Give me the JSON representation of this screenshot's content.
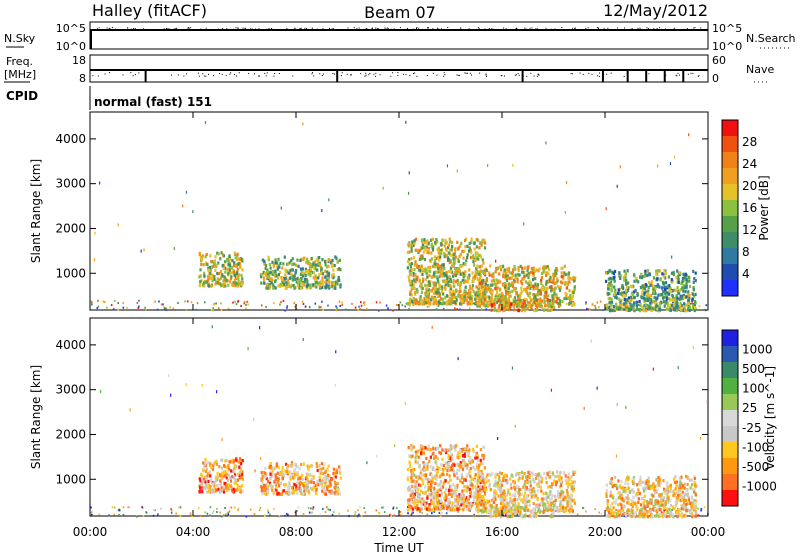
{
  "header": {
    "station": "Halley (fitACF)",
    "beam": "Beam 07",
    "date": "12/May/2012"
  },
  "panels": {
    "nsky": {
      "label": "N.Sky",
      "right_label": "N.Search",
      "left_ticks": [
        "10^5",
        "10^0"
      ],
      "right_ticks": [
        "10^5",
        "10^0"
      ]
    },
    "freq": {
      "label_line1": "Freq.",
      "label_line2": "[MHz]",
      "right_label": "Nave",
      "left_ticks": [
        "18",
        "8"
      ],
      "right_ticks": [
        "60",
        "0"
      ]
    },
    "cpid": {
      "label": "CPID",
      "text": "normal (fast) 151"
    }
  },
  "x_axis": {
    "label": "Time UT",
    "ticks": [
      "00:00",
      "04:00",
      "08:00",
      "12:00",
      "16:00",
      "20:00",
      "00:00"
    ]
  },
  "colors": {
    "power": [
      "#2030ff",
      "#204cb0",
      "#2e7aa0",
      "#3e8c68",
      "#55a048",
      "#8cc040",
      "#e6c028",
      "#f0a020",
      "#f08018",
      "#f05010",
      "#f01010"
    ],
    "velocity": [
      "#ff1010",
      "#ff7020",
      "#ff9a10",
      "#ffc820",
      "#c8c8c8",
      "#d8d8d8",
      "#98c858",
      "#50b040",
      "#3a8a6a",
      "#2a5ab0",
      "#2020e0"
    ]
  },
  "chart_data": [
    {
      "type": "heatmap",
      "title": "",
      "xlabel": "Time UT",
      "ylabel": "Slant Range [km]",
      "xlim": [
        0,
        24
      ],
      "ylim": [
        180,
        4600
      ],
      "y_ticks": [
        1000,
        2000,
        3000,
        4000
      ],
      "colorbar": {
        "label": "Power [dB]",
        "range": [
          0,
          32
        ],
        "ticks": [
          "4",
          "8",
          "12",
          "16",
          "20",
          "24",
          "28"
        ]
      },
      "regions": [
        {
          "x": [
            4.2,
            5.9
          ],
          "y": [
            750,
            1500
          ],
          "level": 0.55
        },
        {
          "x": [
            6.6,
            9.7
          ],
          "y": [
            700,
            1400
          ],
          "level": 0.45
        },
        {
          "x": [
            12.3,
            15.3
          ],
          "y": [
            350,
            1800
          ],
          "level": 0.55
        },
        {
          "x": [
            15.0,
            18.8
          ],
          "y": [
            300,
            1200
          ],
          "level": 0.6
        },
        {
          "x": [
            15.5,
            18.0
          ],
          "y": [
            200,
            450
          ],
          "level": 0.7
        },
        {
          "x": [
            20.0,
            23.5
          ],
          "y": [
            200,
            1100
          ],
          "level": 0.4
        }
      ]
    },
    {
      "type": "heatmap",
      "title": "",
      "xlabel": "Time UT",
      "ylabel": "Slant Range [km]",
      "xlim": [
        0,
        24
      ],
      "ylim": [
        180,
        4600
      ],
      "y_ticks": [
        1000,
        2000,
        3000,
        4000
      ],
      "colorbar": {
        "label": "Velocity [m s^-1]",
        "range": [
          -1000,
          1000
        ],
        "ticks": [
          "1000",
          "500",
          "100",
          "25",
          "-25",
          "-100",
          "-500",
          "-1000"
        ]
      },
      "regions": [
        {
          "x": [
            4.2,
            5.9
          ],
          "y": [
            750,
            1500
          ],
          "level": 0.25
        },
        {
          "x": [
            6.6,
            9.7
          ],
          "y": [
            700,
            1400
          ],
          "level": 0.3
        },
        {
          "x": [
            12.3,
            15.3
          ],
          "y": [
            350,
            1800
          ],
          "level": 0.3
        },
        {
          "x": [
            15.0,
            18.8
          ],
          "y": [
            300,
            1200
          ],
          "level": 0.35
        },
        {
          "x": [
            15.5,
            18.0
          ],
          "y": [
            200,
            450
          ],
          "level": 0.4
        },
        {
          "x": [
            20.0,
            23.5
          ],
          "y": [
            200,
            1100
          ],
          "level": 0.35
        }
      ]
    }
  ]
}
